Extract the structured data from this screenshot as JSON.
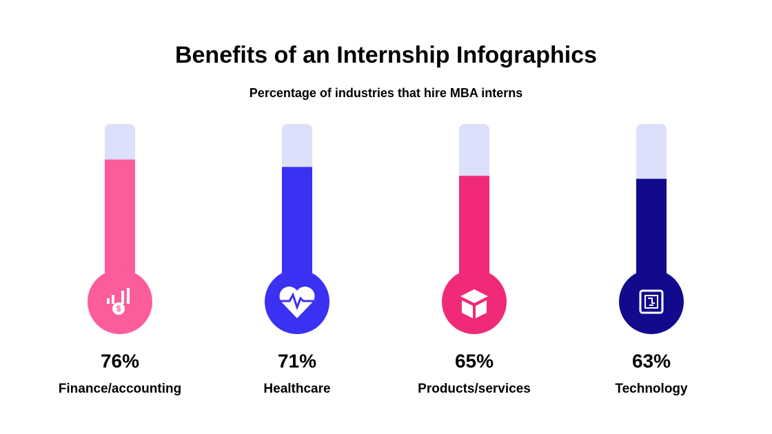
{
  "chart_data": {
    "type": "thermometer",
    "title": "Benefits of an Internship Infographics",
    "subtitle": "Percentage of industries that hire MBA interns",
    "categories": [
      "Finance/accounting",
      "Healthcare",
      "Products/services",
      "Technology"
    ],
    "values": [
      76,
      71,
      65,
      63
    ],
    "value_labels": [
      "76%",
      "71%",
      "65%",
      "63%"
    ],
    "colors": [
      "#fb5c9c",
      "#3b31f2",
      "#f02a78",
      "#120a8c"
    ],
    "track_color": "#dce0fa",
    "ylim": [
      0,
      100
    ]
  }
}
